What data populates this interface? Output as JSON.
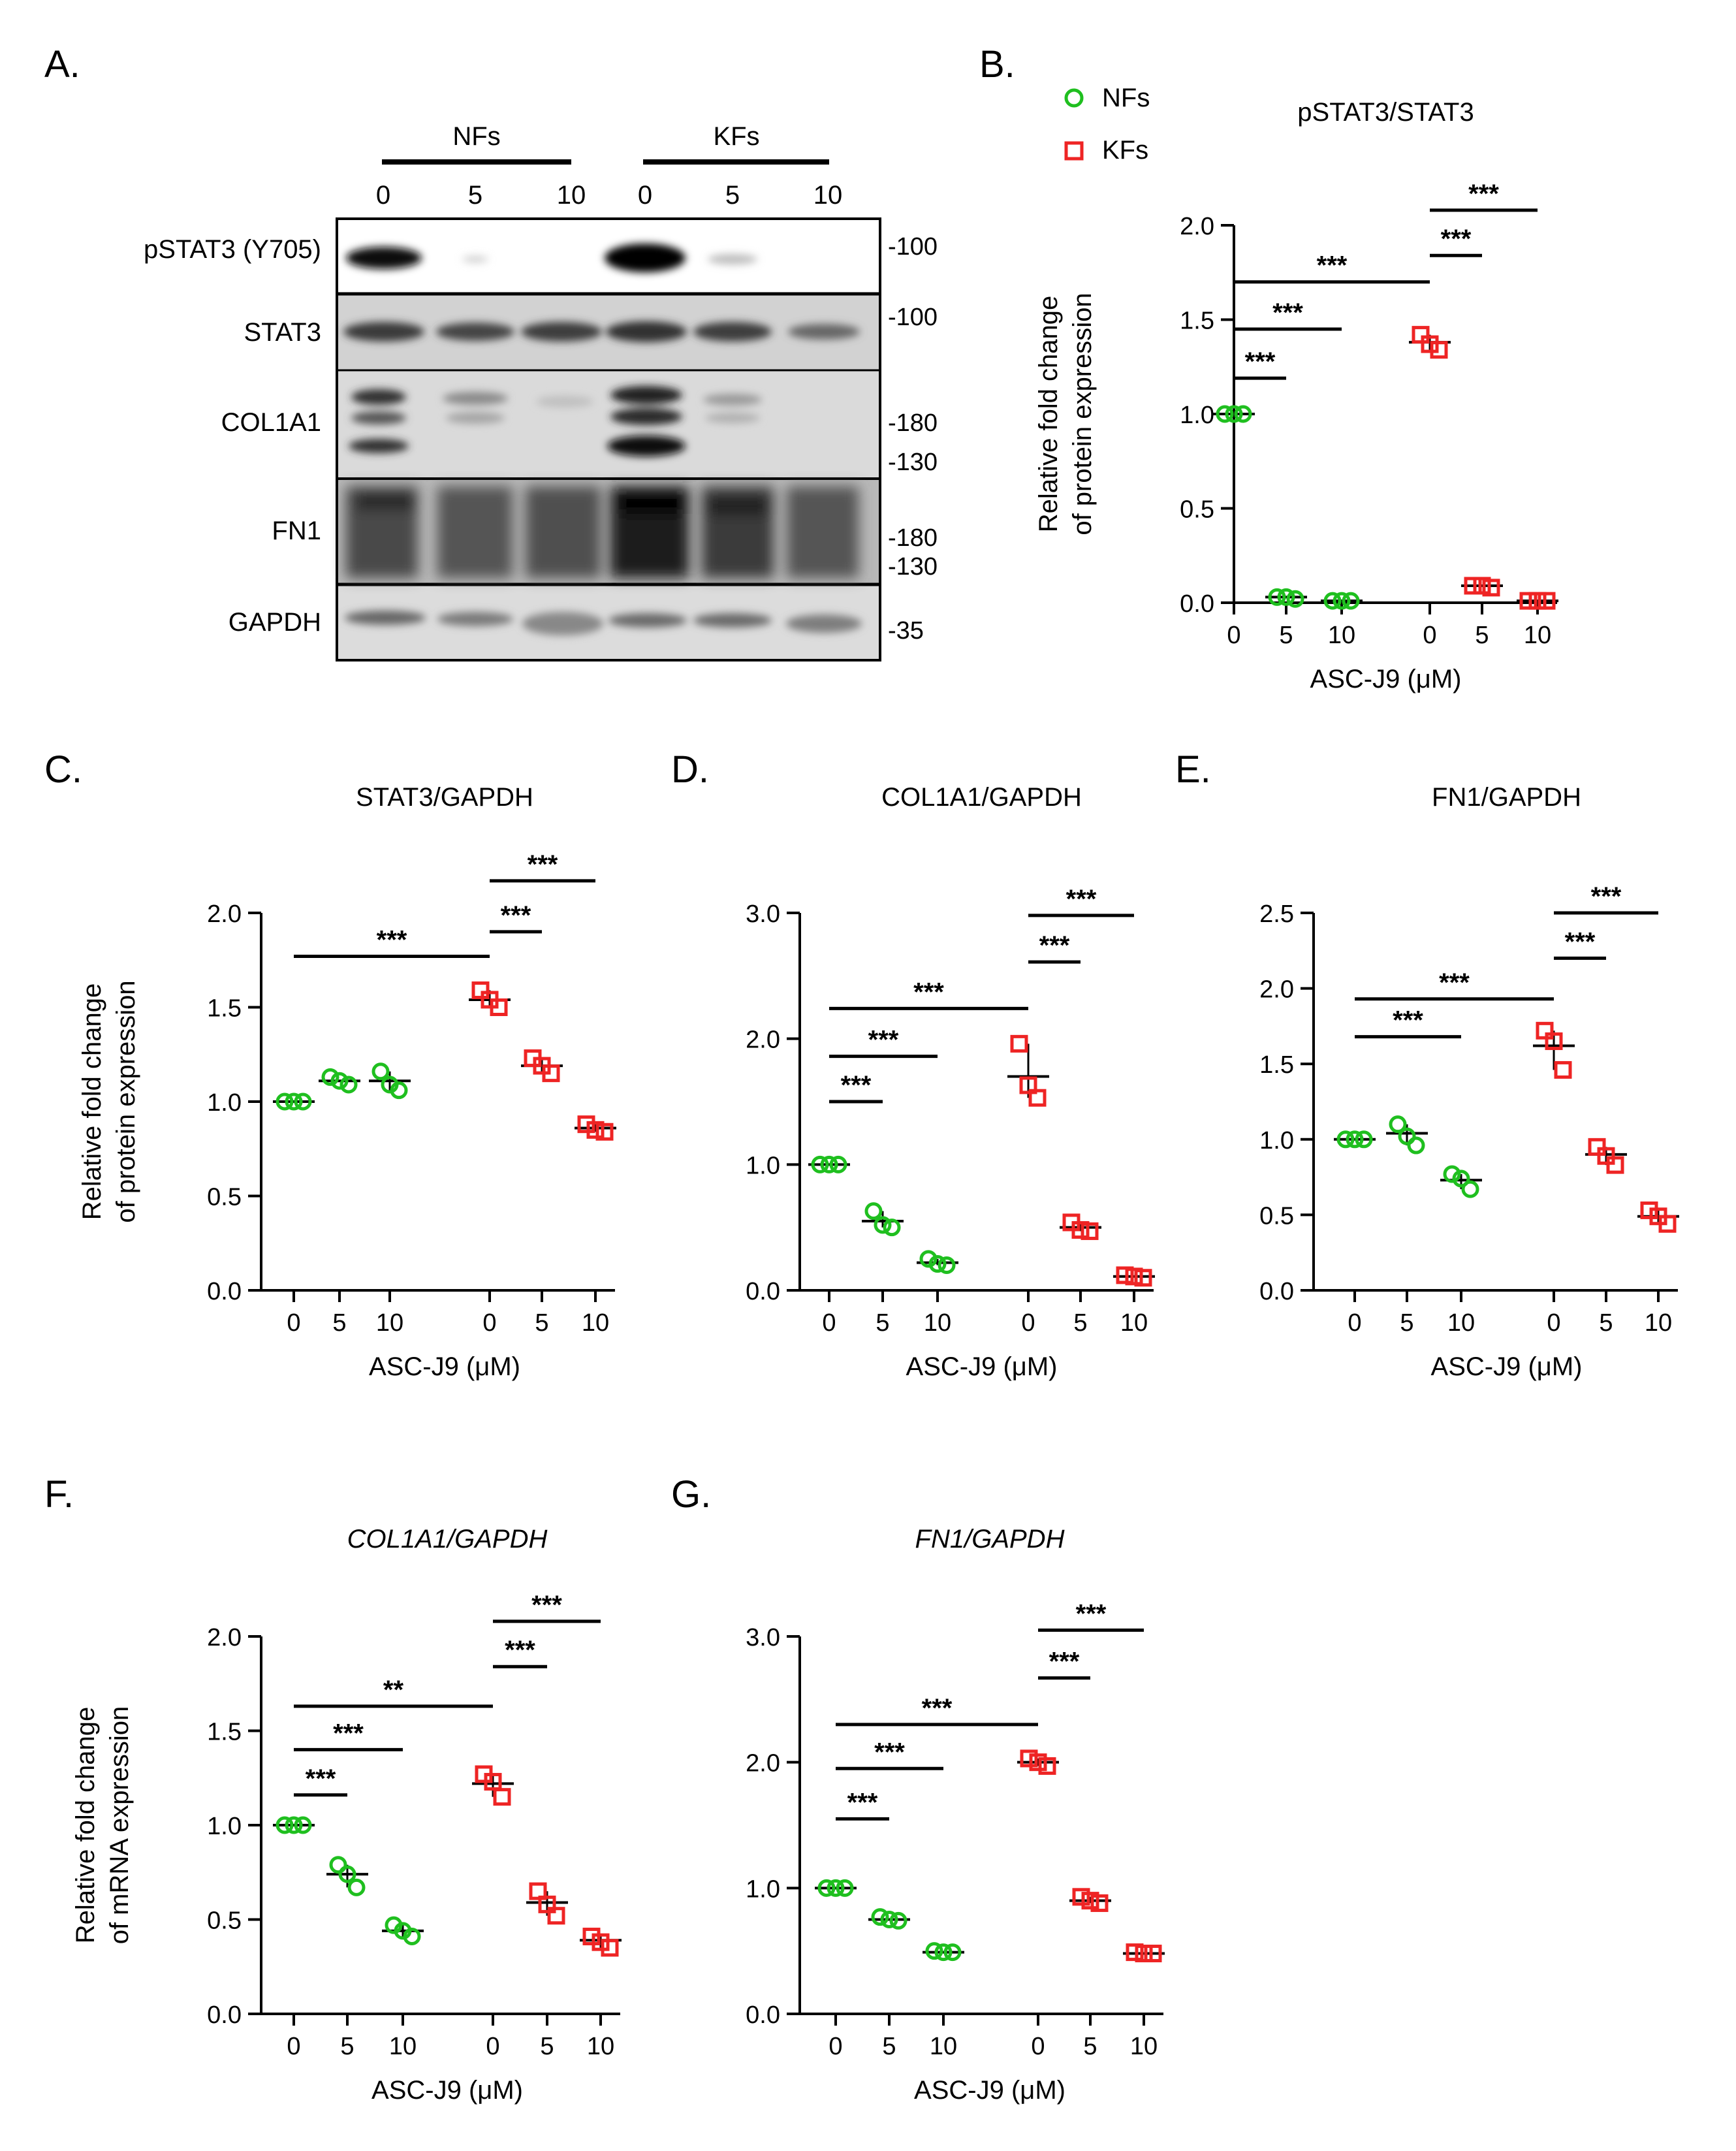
{
  "colors": {
    "nf": "#1fbf1f",
    "kf": "#ee2424",
    "axis": "#000000"
  },
  "figure_labels": [
    "A.",
    "B.",
    "C.",
    "D.",
    "E.",
    "F.",
    "G."
  ],
  "western_blot": {
    "groups": [
      {
        "name": "NFs",
        "doses": [
          "0",
          "5",
          "10"
        ]
      },
      {
        "name": "KFs",
        "doses": [
          "0",
          "5",
          "10"
        ]
      }
    ],
    "strips": [
      {
        "label": "pSTAT3 (Y705)",
        "markers": [
          "-100"
        ]
      },
      {
        "label": "STAT3",
        "markers": [
          "-100"
        ]
      },
      {
        "label": "COL1A1",
        "markers": [
          "-180",
          "-130"
        ]
      },
      {
        "label": "FN1",
        "markers": [
          "-180",
          "-130"
        ]
      },
      {
        "label": "GAPDH",
        "markers": [
          "-35"
        ]
      }
    ]
  },
  "legend": {
    "nf": "NFs",
    "kf": "KFs"
  },
  "chart_data": [
    {
      "id": "B",
      "type": "scatter",
      "title": "pSTAT3/STAT3",
      "title_italic": false,
      "ylabel": [
        "Relative fold change",
        "of protein expression"
      ],
      "xlabel": "ASC-J9 (μM)",
      "x_ticks": [
        "0",
        "5",
        "10",
        "0",
        "5",
        "10"
      ],
      "ylim": [
        0,
        2.0
      ],
      "yticks": [
        "0.0",
        "0.5",
        "1.0",
        "1.5",
        "2.0"
      ],
      "series": [
        {
          "name": "NFs",
          "points": [
            [
              1.0,
              1.0,
              1.0
            ],
            [
              0.03,
              0.03,
              0.02
            ],
            [
              0.01,
              0.01,
              0.01
            ]
          ]
        },
        {
          "name": "KFs",
          "points": [
            [
              1.42,
              1.37,
              1.34
            ],
            [
              0.09,
              0.09,
              0.08
            ],
            [
              0.01,
              0.01,
              0.01
            ]
          ]
        }
      ],
      "means": [
        1.0,
        0.03,
        0.01,
        1.38,
        0.09,
        0.01
      ],
      "comparisons": [
        {
          "from": 0,
          "to": 1,
          "y": 1.19,
          "label": "***"
        },
        {
          "from": 0,
          "to": 2,
          "y": 1.45,
          "label": "***"
        },
        {
          "from": 0,
          "to": 3,
          "y": 1.7,
          "label": "***"
        },
        {
          "from": 3,
          "to": 4,
          "y": 1.84,
          "label": "***"
        },
        {
          "from": 3,
          "to": 5,
          "y": 2.08,
          "label": "***"
        }
      ]
    },
    {
      "id": "C",
      "type": "scatter",
      "title": "STAT3/GAPDH",
      "title_italic": false,
      "ylabel": [
        "Relative fold change",
        "of protein expression"
      ],
      "xlabel": "ASC-J9 (μM)",
      "x_ticks": [
        "0",
        "5",
        "10",
        "0",
        "5",
        "10"
      ],
      "ylim": [
        0,
        2.0
      ],
      "yticks": [
        "0.0",
        "0.5",
        "1.0",
        "1.5",
        "2.0"
      ],
      "series": [
        {
          "name": "NFs",
          "points": [
            [
              1.0,
              1.0,
              1.0
            ],
            [
              1.13,
              1.11,
              1.09
            ],
            [
              1.16,
              1.09,
              1.06
            ]
          ]
        },
        {
          "name": "KFs",
          "points": [
            [
              1.59,
              1.54,
              1.5
            ],
            [
              1.23,
              1.19,
              1.15
            ],
            [
              0.88,
              0.85,
              0.84
            ]
          ]
        }
      ],
      "means": [
        1.0,
        1.11,
        1.11,
        1.54,
        1.19,
        0.86
      ],
      "comparisons": [
        {
          "from": 0,
          "to": 3,
          "y": 1.77,
          "label": "***"
        },
        {
          "from": 3,
          "to": 4,
          "y": 1.9,
          "label": "***"
        },
        {
          "from": 3,
          "to": 5,
          "y": 2.17,
          "label": "***"
        }
      ]
    },
    {
      "id": "D",
      "type": "scatter",
      "title": "COL1A1/GAPDH",
      "title_italic": false,
      "ylabel": [],
      "xlabel": "ASC-J9 (μM)",
      "x_ticks": [
        "0",
        "5",
        "10",
        "0",
        "5",
        "10"
      ],
      "ylim": [
        0,
        3.0
      ],
      "yticks": [
        "0.0",
        "1.0",
        "2.0",
        "3.0"
      ],
      "series": [
        {
          "name": "NFs",
          "points": [
            [
              1.0,
              1.0,
              1.0
            ],
            [
              0.63,
              0.52,
              0.5
            ],
            [
              0.25,
              0.21,
              0.2
            ]
          ]
        },
        {
          "name": "KFs",
          "points": [
            [
              1.96,
              1.63,
              1.53
            ],
            [
              0.54,
              0.48,
              0.47
            ],
            [
              0.12,
              0.11,
              0.1
            ]
          ]
        }
      ],
      "means": [
        1.0,
        0.55,
        0.22,
        1.7,
        0.5,
        0.11
      ],
      "comparisons": [
        {
          "from": 0,
          "to": 1,
          "y": 1.5,
          "label": "***"
        },
        {
          "from": 0,
          "to": 2,
          "y": 1.86,
          "label": "***"
        },
        {
          "from": 0,
          "to": 3,
          "y": 2.24,
          "label": "***"
        },
        {
          "from": 3,
          "to": 4,
          "y": 2.61,
          "label": "***"
        },
        {
          "from": 3,
          "to": 5,
          "y": 2.98,
          "label": "***"
        }
      ]
    },
    {
      "id": "E",
      "type": "scatter",
      "title": "FN1/GAPDH",
      "title_italic": false,
      "ylabel": [],
      "xlabel": "ASC-J9 (μM)",
      "x_ticks": [
        "0",
        "5",
        "10",
        "0",
        "5",
        "10"
      ],
      "ylim": [
        0,
        2.5
      ],
      "yticks": [
        "0.0",
        "0.5",
        "1.0",
        "1.5",
        "2.0",
        "2.5"
      ],
      "series": [
        {
          "name": "NFs",
          "points": [
            [
              1.0,
              1.0,
              1.0
            ],
            [
              1.1,
              1.02,
              0.96
            ],
            [
              0.77,
              0.74,
              0.67
            ]
          ]
        },
        {
          "name": "KFs",
          "points": [
            [
              1.72,
              1.65,
              1.46
            ],
            [
              0.95,
              0.89,
              0.83
            ],
            [
              0.53,
              0.49,
              0.44
            ]
          ]
        }
      ],
      "means": [
        1.0,
        1.04,
        0.73,
        1.62,
        0.9,
        0.49
      ],
      "comparisons": [
        {
          "from": 0,
          "to": 2,
          "y": 1.68,
          "label": "***"
        },
        {
          "from": 0,
          "to": 3,
          "y": 1.93,
          "label": "***"
        },
        {
          "from": 3,
          "to": 4,
          "y": 2.2,
          "label": "***"
        },
        {
          "from": 3,
          "to": 5,
          "y": 2.5,
          "label": "***"
        }
      ]
    },
    {
      "id": "F",
      "type": "scatter",
      "title": "COL1A1/GAPDH",
      "title_italic": true,
      "ylabel": [
        "Relative fold change",
        "of mRNA expression"
      ],
      "xlabel": "ASC-J9 (μM)",
      "x_ticks": [
        "0",
        "5",
        "10",
        "0",
        "5",
        "10"
      ],
      "ylim": [
        0,
        2.0
      ],
      "yticks": [
        "0.0",
        "0.5",
        "1.0",
        "1.5",
        "2.0"
      ],
      "series": [
        {
          "name": "NFs",
          "points": [
            [
              1.0,
              1.0,
              1.0
            ],
            [
              0.79,
              0.74,
              0.67
            ],
            [
              0.47,
              0.44,
              0.41
            ]
          ]
        },
        {
          "name": "KFs",
          "points": [
            [
              1.27,
              1.23,
              1.15
            ],
            [
              0.65,
              0.58,
              0.52
            ],
            [
              0.41,
              0.38,
              0.35
            ]
          ]
        }
      ],
      "means": [
        1.0,
        0.74,
        0.44,
        1.22,
        0.59,
        0.39
      ],
      "comparisons": [
        {
          "from": 0,
          "to": 1,
          "y": 1.16,
          "label": "***"
        },
        {
          "from": 0,
          "to": 2,
          "y": 1.4,
          "label": "***"
        },
        {
          "from": 0,
          "to": 3,
          "y": 1.63,
          "label": "**"
        },
        {
          "from": 3,
          "to": 4,
          "y": 1.84,
          "label": "***"
        },
        {
          "from": 3,
          "to": 5,
          "y": 2.08,
          "label": "***"
        }
      ]
    },
    {
      "id": "G",
      "type": "scatter",
      "title": "FN1/GAPDH",
      "title_italic": true,
      "ylabel": [],
      "xlabel": "ASC-J9 (μM)",
      "x_ticks": [
        "0",
        "5",
        "10",
        "0",
        "5",
        "10"
      ],
      "ylim": [
        0,
        3.0
      ],
      "yticks": [
        "0.0",
        "1.0",
        "2.0",
        "3.0"
      ],
      "series": [
        {
          "name": "NFs",
          "points": [
            [
              1.0,
              1.0,
              1.0
            ],
            [
              0.77,
              0.75,
              0.74
            ],
            [
              0.5,
              0.49,
              0.49
            ]
          ]
        },
        {
          "name": "KFs",
          "points": [
            [
              2.03,
              2.0,
              1.97
            ],
            [
              0.93,
              0.9,
              0.88
            ],
            [
              0.49,
              0.48,
              0.48
            ]
          ]
        }
      ],
      "means": [
        1.0,
        0.75,
        0.49,
        2.0,
        0.9,
        0.48
      ],
      "comparisons": [
        {
          "from": 0,
          "to": 1,
          "y": 1.55,
          "label": "***"
        },
        {
          "from": 0,
          "to": 2,
          "y": 1.95,
          "label": "***"
        },
        {
          "from": 0,
          "to": 3,
          "y": 2.3,
          "label": "***"
        },
        {
          "from": 3,
          "to": 4,
          "y": 2.67,
          "label": "***"
        },
        {
          "from": 3,
          "to": 5,
          "y": 3.05,
          "label": "***"
        }
      ]
    }
  ]
}
